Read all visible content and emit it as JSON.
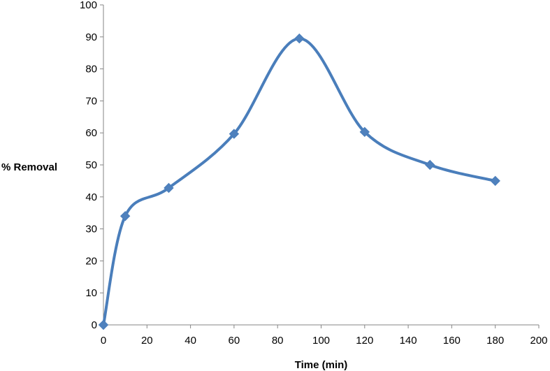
{
  "chart_data": {
    "type": "scatter",
    "title": "",
    "xlabel": "Time (min)",
    "ylabel": "% Removal",
    "xlim": [
      0,
      200
    ],
    "ylim": [
      0,
      100
    ],
    "x_ticks": [
      0,
      20,
      40,
      60,
      80,
      100,
      120,
      140,
      160,
      180,
      200
    ],
    "y_ticks": [
      0,
      10,
      20,
      30,
      40,
      50,
      60,
      70,
      80,
      90,
      100
    ],
    "grid": false,
    "legend": "none",
    "line_style": "smooth",
    "marker": "diamond",
    "series_color": "#4a7ebb",
    "marker_color": "#4f81bd",
    "series": [
      {
        "x": [
          0,
          10,
          30,
          60,
          90,
          120,
          150,
          180
        ],
        "y": [
          0,
          34,
          42.8,
          59.7,
          89.5,
          60.3,
          50,
          45
        ]
      }
    ]
  }
}
